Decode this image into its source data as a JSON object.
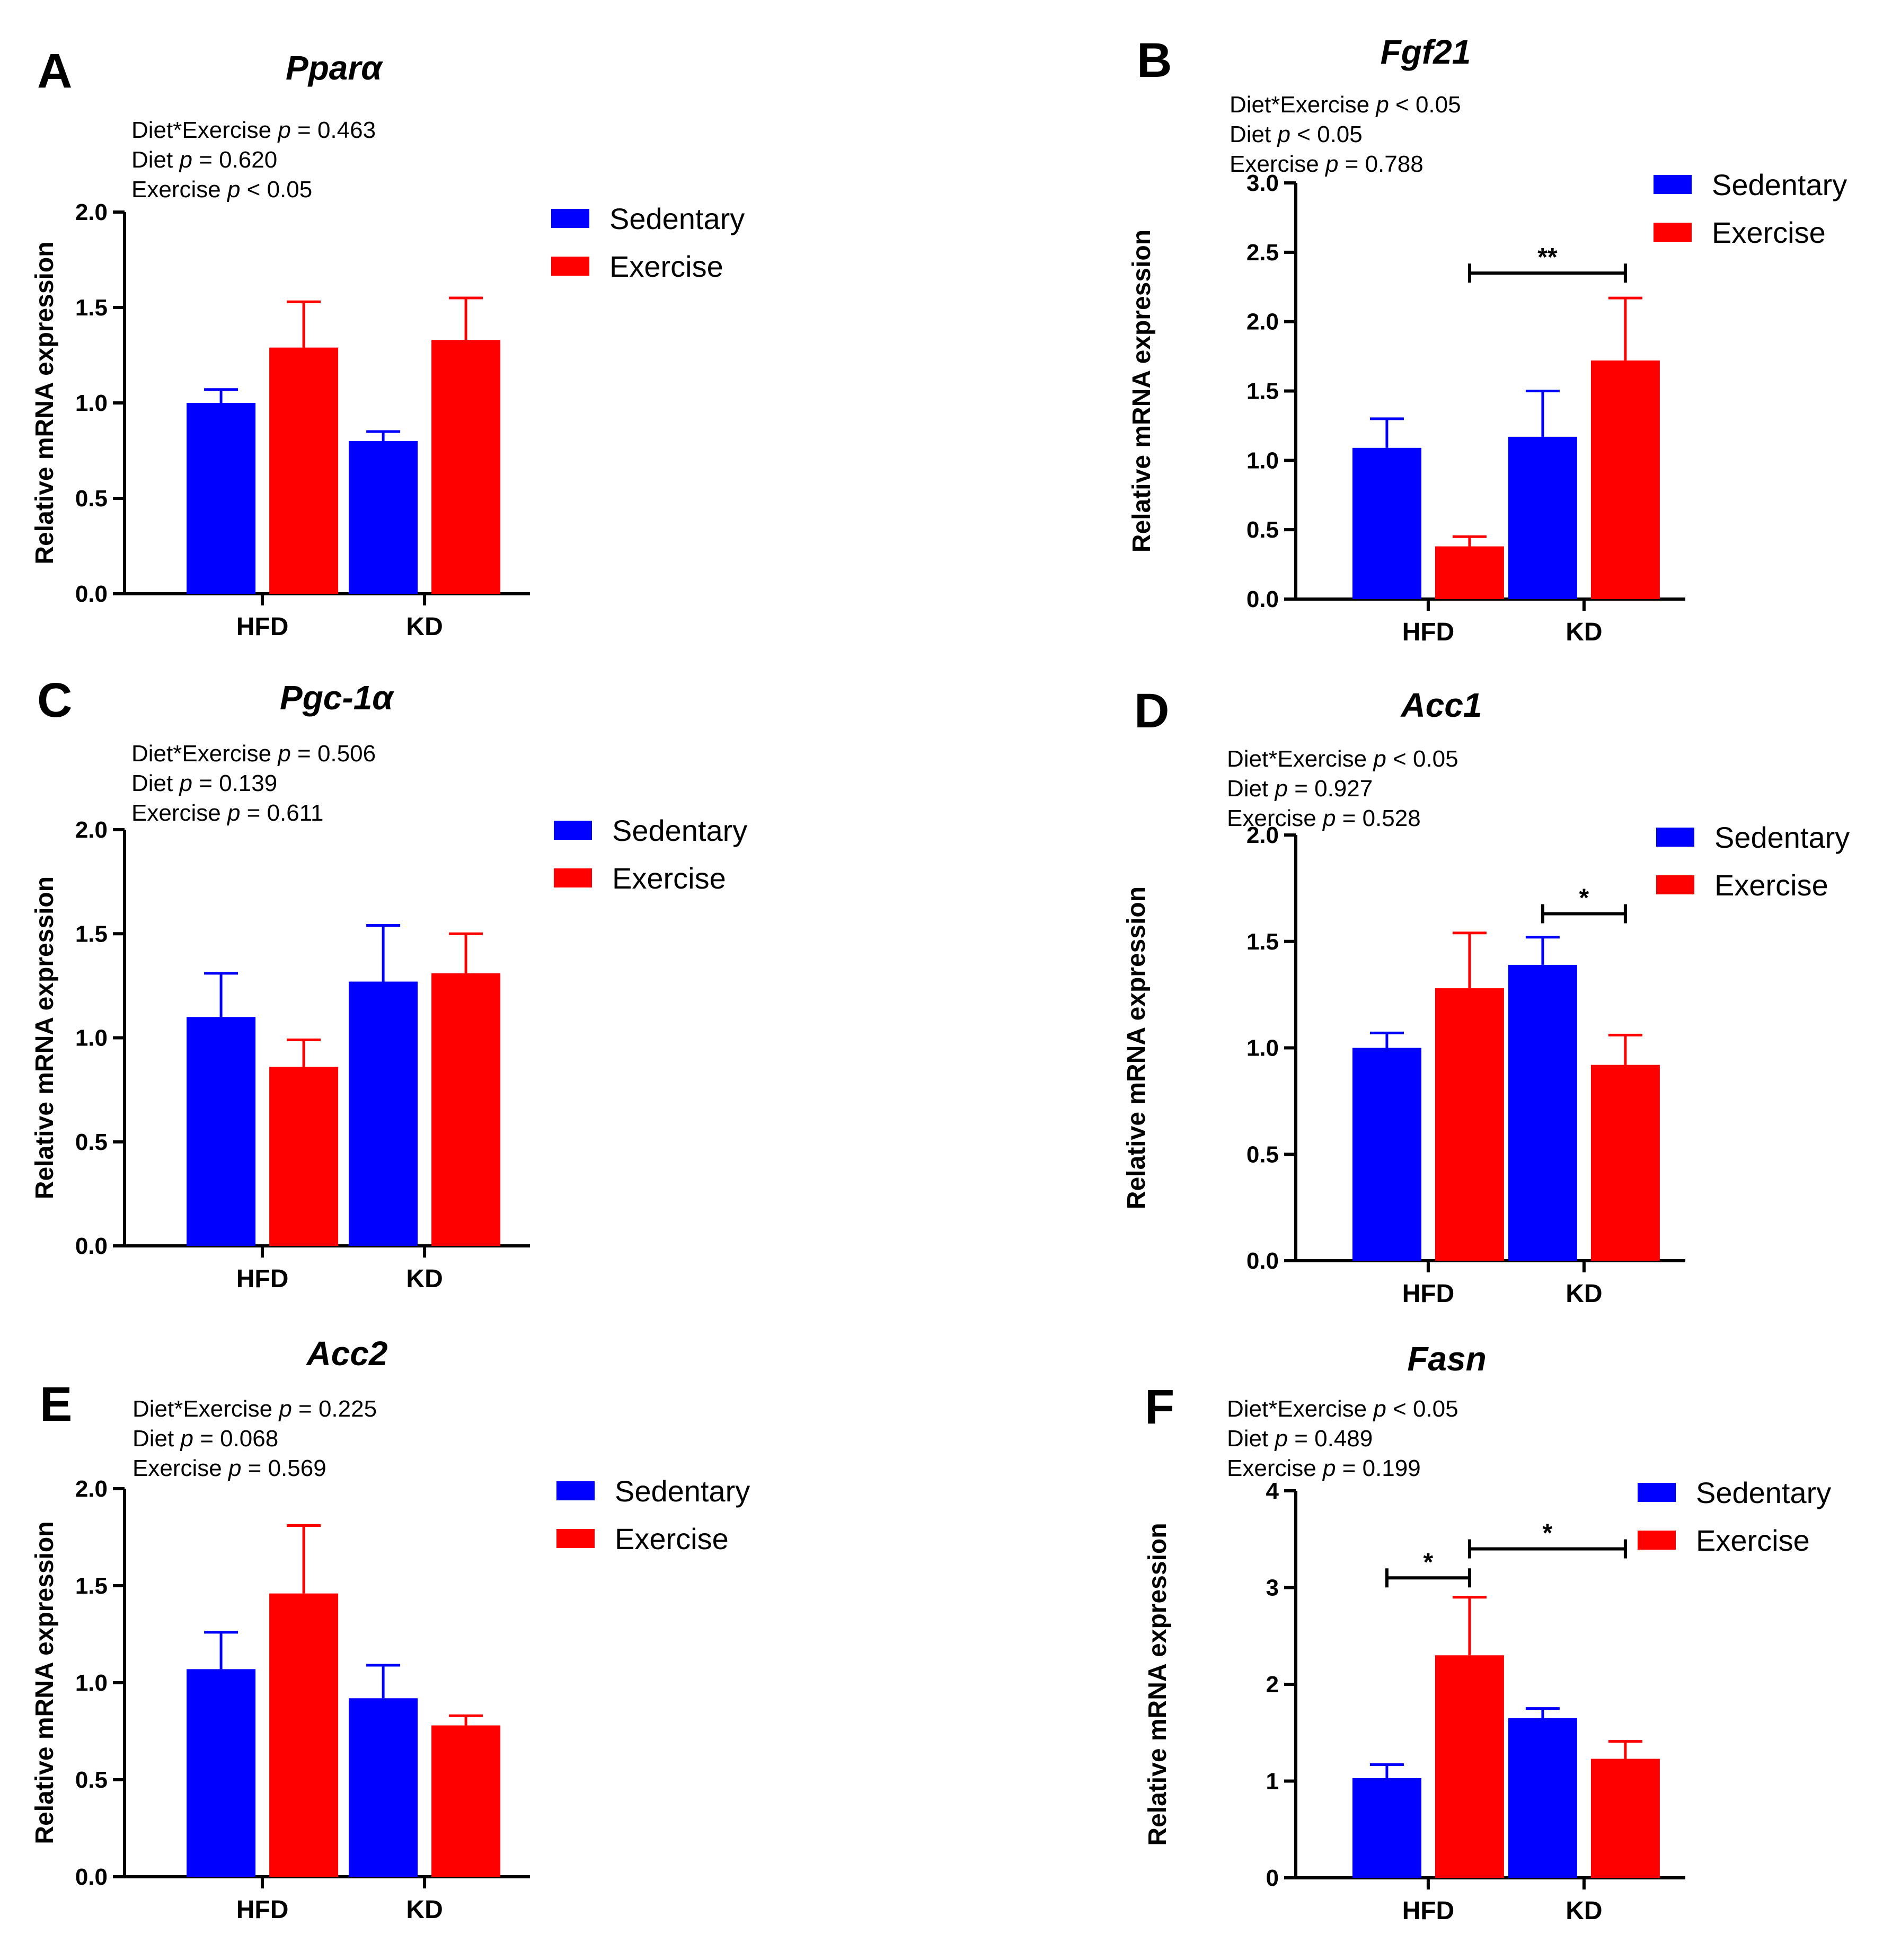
{
  "series_colors": {
    "Sedentary": "#0000FF",
    "Exercise": "#FF0000"
  },
  "chart_data": [
    {
      "type": "bar",
      "panel": "A",
      "title": "Pparα",
      "stats": [
        {
          "prefix": "Diet*Exercise ",
          "p": "p",
          "suffix": " = 0.463"
        },
        {
          "prefix": "Diet ",
          "p": "p",
          "suffix": " = 0.620"
        },
        {
          "prefix": "Exercise ",
          "p": "p",
          "suffix": " < 0.05"
        }
      ],
      "ylabel": "Relative mRNA expression",
      "ylim": [
        0,
        2.0
      ],
      "yticks": [
        "0.0",
        "0.5",
        "1.0",
        "1.5",
        "2.0"
      ],
      "ytick_values": [
        0,
        0.5,
        1.0,
        1.5,
        2.0
      ],
      "categories": [
        "HFD",
        "KD"
      ],
      "series": [
        {
          "name": "Sedentary",
          "values": [
            1.0,
            0.8
          ],
          "errors": [
            0.07,
            0.05
          ]
        },
        {
          "name": "Exercise",
          "values": [
            1.29,
            1.33
          ],
          "errors": [
            0.24,
            0.22
          ]
        }
      ],
      "legend": [
        "Sedentary",
        "Exercise"
      ],
      "significance": []
    },
    {
      "type": "bar",
      "panel": "B",
      "title": "Fgf21",
      "stats": [
        {
          "prefix": "Diet*Exercise ",
          "p": "p",
          "suffix": " < 0.05"
        },
        {
          "prefix": "Diet ",
          "p": "p",
          "suffix": " < 0.05"
        },
        {
          "prefix": "Exercise ",
          "p": "p",
          "suffix": " = 0.788"
        }
      ],
      "ylabel": "Relative mRNA expression",
      "ylim": [
        0,
        3.0
      ],
      "yticks": [
        "0.0",
        "0.5",
        "1.0",
        "1.5",
        "2.0",
        "2.5",
        "3.0"
      ],
      "ytick_values": [
        0,
        0.5,
        1.0,
        1.5,
        2.0,
        2.5,
        3.0
      ],
      "categories": [
        "HFD",
        "KD"
      ],
      "series": [
        {
          "name": "Sedentary",
          "values": [
            1.09,
            1.17
          ],
          "errors": [
            0.21,
            0.33
          ]
        },
        {
          "name": "Exercise",
          "values": [
            0.38,
            1.72
          ],
          "errors": [
            0.07,
            0.45
          ]
        }
      ],
      "legend": [
        "Sedentary",
        "Exercise"
      ],
      "significance": [
        {
          "from": [
            0,
            1
          ],
          "to": [
            1,
            1
          ],
          "level": 2.35,
          "label": "**"
        }
      ]
    },
    {
      "type": "bar",
      "panel": "C",
      "title": "Pgc-1α",
      "stats": [
        {
          "prefix": "Diet*Exercise ",
          "p": "p",
          "suffix": " = 0.506"
        },
        {
          "prefix": "Diet ",
          "p": "p",
          "suffix": " = 0.139"
        },
        {
          "prefix": "Exercise ",
          "p": "p",
          "suffix": " = 0.611"
        }
      ],
      "ylabel": "Relative mRNA expression",
      "ylim": [
        0,
        2.0
      ],
      "yticks": [
        "0.0",
        "0.5",
        "1.0",
        "1.5",
        "2.0"
      ],
      "ytick_values": [
        0,
        0.5,
        1.0,
        1.5,
        2.0
      ],
      "categories": [
        "HFD",
        "KD"
      ],
      "series": [
        {
          "name": "Sedentary",
          "values": [
            1.1,
            1.27
          ],
          "errors": [
            0.21,
            0.27
          ]
        },
        {
          "name": "Exercise",
          "values": [
            0.86,
            1.31
          ],
          "errors": [
            0.13,
            0.19
          ]
        }
      ],
      "legend": [
        "Sedentary",
        "Exercise"
      ],
      "significance": []
    },
    {
      "type": "bar",
      "panel": "D",
      "title": "Acc1",
      "stats": [
        {
          "prefix": "Diet*Exercise ",
          "p": "p",
          "suffix": " < 0.05"
        },
        {
          "prefix": "Diet ",
          "p": "p",
          "suffix": " = 0.927"
        },
        {
          "prefix": "Exercise ",
          "p": "p",
          "suffix": " = 0.528"
        }
      ],
      "ylabel": "Relative mRNA expression",
      "ylim": [
        0,
        2.0
      ],
      "yticks": [
        "0.0",
        "0.5",
        "1.0",
        "1.5",
        "2.0"
      ],
      "ytick_values": [
        0,
        0.5,
        1.0,
        1.5,
        2.0
      ],
      "categories": [
        "HFD",
        "KD"
      ],
      "series": [
        {
          "name": "Sedentary",
          "values": [
            1.0,
            1.39
          ],
          "errors": [
            0.07,
            0.13
          ]
        },
        {
          "name": "Exercise",
          "values": [
            1.28,
            0.92
          ],
          "errors": [
            0.26,
            0.14
          ]
        }
      ],
      "legend": [
        "Sedentary",
        "Exercise"
      ],
      "significance": [
        {
          "from": [
            1,
            0
          ],
          "to": [
            1,
            1
          ],
          "level": 1.63,
          "label": "*"
        }
      ]
    },
    {
      "type": "bar",
      "panel": "E",
      "title": "Acc2",
      "stats": [
        {
          "prefix": "Diet*Exercise ",
          "p": "p",
          "suffix": " = 0.225"
        },
        {
          "prefix": "Diet ",
          "p": "p",
          "suffix": " = 0.068"
        },
        {
          "prefix": "Exercise ",
          "p": "p",
          "suffix": " = 0.569"
        }
      ],
      "ylabel": "Relative mRNA expression",
      "ylim": [
        0,
        2.0
      ],
      "yticks": [
        "0.0",
        "0.5",
        "1.0",
        "1.5",
        "2.0"
      ],
      "ytick_values": [
        0,
        0.5,
        1.0,
        1.5,
        2.0
      ],
      "categories": [
        "HFD",
        "KD"
      ],
      "series": [
        {
          "name": "Sedentary",
          "values": [
            1.07,
            0.92
          ],
          "errors": [
            0.19,
            0.17
          ]
        },
        {
          "name": "Exercise",
          "values": [
            1.46,
            0.78
          ],
          "errors": [
            0.35,
            0.05
          ]
        }
      ],
      "legend": [
        "Sedentary",
        "Exercise"
      ],
      "significance": []
    },
    {
      "type": "bar",
      "panel": "F",
      "title": "Fasn",
      "stats": [
        {
          "prefix": "Diet*Exercise ",
          "p": "p",
          "suffix": " < 0.05"
        },
        {
          "prefix": "Diet ",
          "p": "p",
          "suffix": " = 0.489"
        },
        {
          "prefix": "Exercise ",
          "p": "p",
          "suffix": " = 0.199"
        }
      ],
      "ylabel": "Relative mRNA expression",
      "ylim": [
        0,
        4
      ],
      "yticks": [
        "0",
        "1",
        "2",
        "3",
        "4"
      ],
      "ytick_values": [
        0,
        1,
        2,
        3,
        4
      ],
      "categories": [
        "HFD",
        "KD"
      ],
      "series": [
        {
          "name": "Sedentary",
          "values": [
            1.03,
            1.65
          ],
          "errors": [
            0.14,
            0.1
          ]
        },
        {
          "name": "Exercise",
          "values": [
            2.3,
            1.23
          ],
          "errors": [
            0.6,
            0.18
          ]
        }
      ],
      "legend": [
        "Sedentary",
        "Exercise"
      ],
      "significance": [
        {
          "from": [
            0,
            0
          ],
          "to": [
            0,
            1
          ],
          "level": 3.1,
          "label": "*"
        },
        {
          "from": [
            0,
            1
          ],
          "to": [
            1,
            1
          ],
          "level": 3.4,
          "label": "*"
        }
      ]
    }
  ]
}
